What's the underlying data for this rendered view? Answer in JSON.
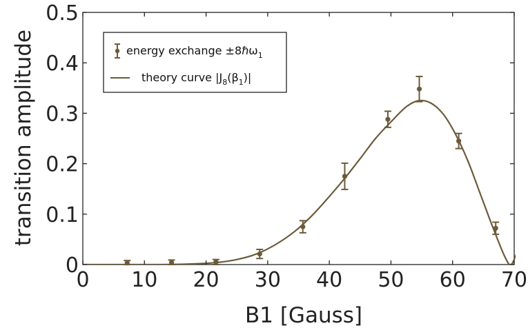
{
  "chart_data": {
    "type": "scatter",
    "xlabel": "B1 [Gauss]",
    "ylabel": "transition amplitude",
    "xlim": [
      0,
      70
    ],
    "ylim": [
      0,
      0.5
    ],
    "xticks": [
      0,
      10,
      20,
      30,
      40,
      50,
      60,
      70
    ],
    "yticks": [
      0,
      0.1,
      0.2,
      0.3,
      0.4,
      0.5
    ],
    "xtick_labels": [
      "0",
      "10",
      "20",
      "30",
      "40",
      "50",
      "60",
      "70"
    ],
    "ytick_labels": [
      "0",
      "0.1",
      "0.2",
      "0.3",
      "0.4",
      "0.5"
    ],
    "grid": false,
    "legend_position": "top-left",
    "color": "#6b5a3a",
    "series": [
      {
        "name": "energy exchange ±8ℏω1",
        "kind": "errorbar",
        "x": [
          7.2,
          14.4,
          21.6,
          28.7,
          35.7,
          42.5,
          49.5,
          54.6,
          61.0,
          67.0
        ],
        "y": [
          0.003,
          0.004,
          0.005,
          0.021,
          0.075,
          0.175,
          0.288,
          0.348,
          0.245,
          0.072
        ],
        "yerr": [
          0.005,
          0.005,
          0.005,
          0.009,
          0.012,
          0.026,
          0.016,
          0.025,
          0.015,
          0.012
        ]
      },
      {
        "name": "theory curve |J8(β1)|",
        "kind": "line",
        "x": [
          0,
          5,
          10,
          15,
          20,
          22.5,
          25,
          27.5,
          30,
          32.5,
          35,
          37.5,
          40,
          42.5,
          45,
          47.5,
          50,
          52.5,
          54.5,
          56.5,
          58.5,
          60.5,
          62.5,
          64.5,
          66.5,
          68.5,
          69.5,
          70.5,
          71.5
        ],
        "y": [
          0,
          0,
          0,
          0.0004,
          0.0025,
          0.005,
          0.01,
          0.018,
          0.031,
          0.049,
          0.072,
          0.101,
          0.135,
          0.171,
          0.21,
          0.25,
          0.283,
          0.313,
          0.325,
          0.32,
          0.298,
          0.258,
          0.205,
          0.14,
          0.075,
          0.015,
          0.0,
          0.025,
          0.045
        ]
      }
    ]
  },
  "legend": {
    "entry1_main": "energy exchange ±8ℏω",
    "entry1_sub": "1",
    "entry2_main": "theory curve |J",
    "entry2_sub": "8",
    "entry2_mid": "(β",
    "entry2_sub2": "1",
    "entry2_end": ")|"
  }
}
